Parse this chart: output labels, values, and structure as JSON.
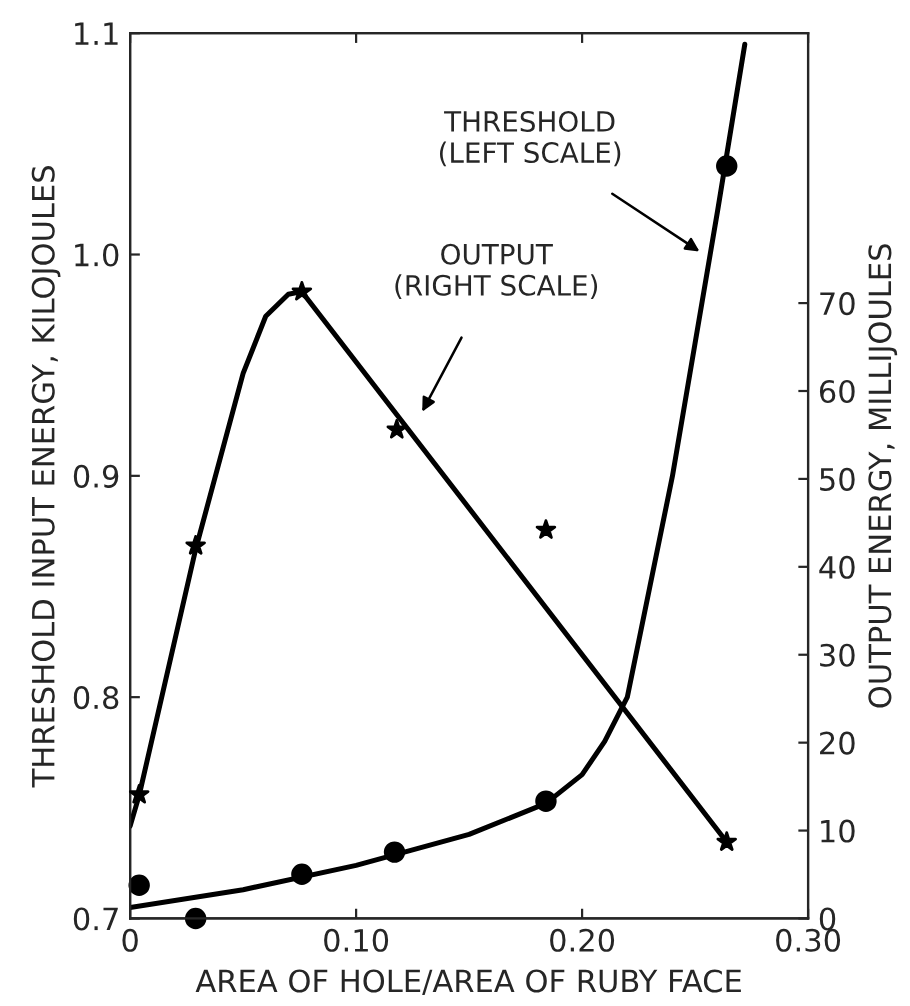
{
  "chart_data": {
    "type": "line",
    "xlabel": "AREA OF HOLE/AREA OF RUBY FACE",
    "ylabel": "THRESHOLD INPUT ENERGY, KILOJOULES",
    "y2label": "OUTPUT ENERGY, MILLIJOULES",
    "xlim": [
      0,
      0.3
    ],
    "xticks": [
      {
        "value": 0,
        "label": "0"
      },
      {
        "value": 0.1,
        "label": "0.10"
      },
      {
        "value": 0.2,
        "label": "0.20"
      },
      {
        "value": 0.3,
        "label": "0.30"
      }
    ],
    "ylim": [
      0.7,
      1.1
    ],
    "yticks": [
      {
        "value": 0.7,
        "label": "0.7"
      },
      {
        "value": 0.8,
        "label": "0.8"
      },
      {
        "value": 0.9,
        "label": "0.9"
      },
      {
        "value": 1.0,
        "label": "1.0"
      },
      {
        "value": 1.1,
        "label": "1.1"
      }
    ],
    "y2lim": [
      0,
      100.7
    ],
    "y2ticks": [
      0,
      10,
      20,
      30,
      40,
      50,
      60,
      70
    ],
    "grid": false,
    "legend": false,
    "series": [
      {
        "axis": "y",
        "color": "#000000",
        "marker": "none",
        "x": [
          0,
          0.05,
          0.1,
          0.15,
          0.184,
          0.2,
          0.21,
          0.22,
          0.23,
          0.24,
          0.25,
          0.26,
          0.272
        ],
        "values": [
          0.705,
          0.713,
          0.724,
          0.738,
          0.752,
          0.765,
          0.78,
          0.8,
          0.85,
          0.9,
          0.96,
          1.02,
          1.095
        ]
      },
      {
        "type": "scatter",
        "axis": "y",
        "color": "#000000",
        "marker": "circle",
        "x": [
          0.004,
          0.029,
          0.076,
          0.117,
          0.184,
          0.264
        ],
        "values": [
          0.715,
          0.7,
          0.72,
          0.73,
          0.753,
          1.04
        ]
      },
      {
        "axis": "y2",
        "color": "#000000",
        "marker": "none",
        "x": [
          0,
          0.004,
          0.029,
          0.05,
          0.06,
          0.07,
          0.076,
          0.264
        ],
        "values": [
          10.5,
          14,
          42,
          62,
          68.5,
          71,
          71.3,
          8.7
        ]
      },
      {
        "type": "scatter",
        "axis": "y2",
        "color": "#000000",
        "marker": "star",
        "x": [
          0.004,
          0.029,
          0.076,
          0.118,
          0.184,
          0.264
        ],
        "values": [
          14.1,
          42.4,
          71.3,
          55.6,
          44.2,
          8.7
        ]
      }
    ],
    "annotations": [
      {
        "text": "THRESHOLD\n(LEFT SCALE)",
        "x": 0.254,
        "y": 1.0
      },
      "OUTPUT\n(RIGHT SCALE)"
    ]
  }
}
